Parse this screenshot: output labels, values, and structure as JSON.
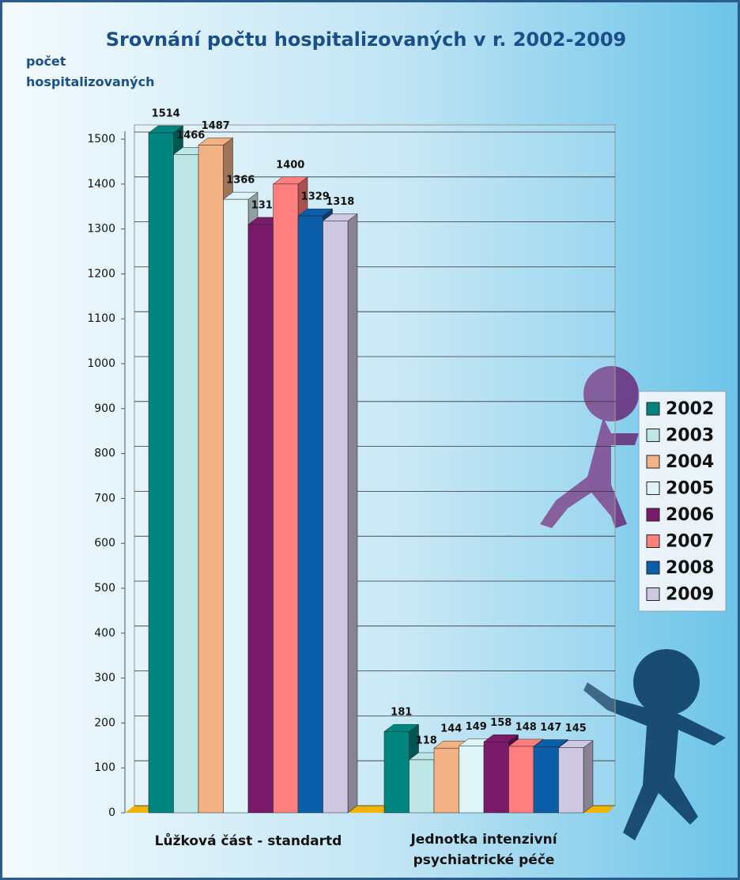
{
  "chart_data": {
    "type": "bar",
    "title": "Srovnání počtu hospitalizovaných v r. 2002-2009",
    "y_label": "počet hospitalizovaných",
    "categories": [
      "Lůžková část  - standartd",
      "Jednotka intenzivní psychiatrické péče"
    ],
    "series": [
      {
        "name": "2002",
        "color": "#00857f",
        "values": [
          1514,
          181
        ]
      },
      {
        "name": "2003",
        "color": "#bfe6e6",
        "values": [
          1466,
          118
        ]
      },
      {
        "name": "2004",
        "color": "#f2b283",
        "values": [
          1487,
          144
        ]
      },
      {
        "name": "2005",
        "color": "#dff4f7",
        "values": [
          1366,
          149
        ]
      },
      {
        "name": "2006",
        "color": "#7b1a6a",
        "values": [
          1310,
          158
        ]
      },
      {
        "name": "2007",
        "color": "#ff7f7f",
        "values": [
          1400,
          148
        ]
      },
      {
        "name": "2008",
        "color": "#0b5ea8",
        "values": [
          1329,
          147
        ]
      },
      {
        "name": "2009",
        "color": "#cfc8e3",
        "values": [
          1318,
          145
        ]
      }
    ],
    "ylim": [
      0,
      1500
    ],
    "yticks": [
      0,
      100,
      200,
      300,
      400,
      500,
      600,
      700,
      800,
      900,
      1000,
      1100,
      1200,
      1300,
      1400,
      1500
    ],
    "grid": true,
    "legend": "right"
  }
}
